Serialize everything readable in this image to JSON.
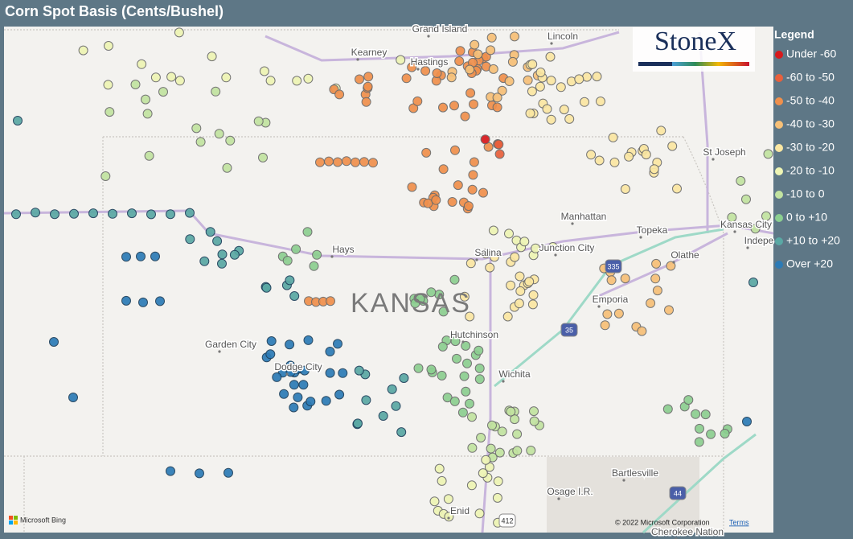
{
  "header": {
    "title": "Corn Spot Basis (Cents/Bushel)"
  },
  "legend": {
    "title": "Legend",
    "items": [
      {
        "label": "Under -60",
        "color": "#d7191c"
      },
      {
        "label": "-60 to -50",
        "color": "#e8603c"
      },
      {
        "label": "-50 to -40",
        "color": "#f0904c"
      },
      {
        "label": "-40 to -30",
        "color": "#f7c077"
      },
      {
        "label": "-30 to -20",
        "color": "#fbe7a2"
      },
      {
        "label": "-20 to -10",
        "color": "#eef5b4"
      },
      {
        "label": "-10 to 0",
        "color": "#c2e3a0"
      },
      {
        "label": "0 to +10",
        "color": "#8ccf90"
      },
      {
        "label": "+10 to +20",
        "color": "#5aa8a4"
      },
      {
        "label": "Over +20",
        "color": "#2c7bb6"
      }
    ]
  },
  "logo": "StoneX",
  "map": {
    "state": "KANSAS",
    "places": [
      "Grand Island",
      "Kearney",
      "Hastings",
      "Lincoln",
      "St Joseph",
      "Manhattan",
      "Topeka",
      "Kansas City",
      "Indepe",
      "Hays",
      "Salina",
      "Junction City",
      "Olathe",
      "Emporia",
      "Garden City",
      "Dodge City",
      "Hutchinson",
      "Wichita",
      "Bartlesville",
      "Osage I.R.",
      "Enid",
      "Cherokee Nation"
    ],
    "highways": [
      "335",
      "35",
      "44",
      "412"
    ]
  },
  "attribution": {
    "provider": "Microsoft Bing",
    "copyright": "© 2022 Microsoft Corporation",
    "terms": "Terms"
  }
}
